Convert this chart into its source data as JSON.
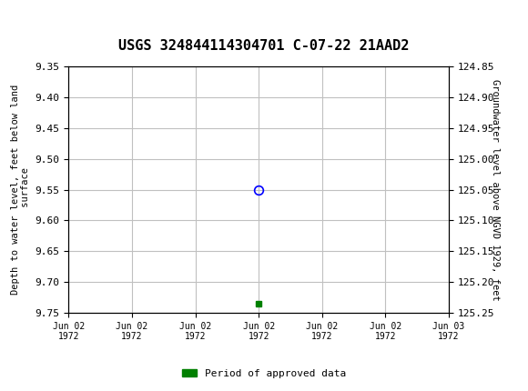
{
  "title": "USGS 324844114304701 C-07-22 21AAD2",
  "left_ylabel": "Depth to water level, feet below land\n surface",
  "right_ylabel": "Groundwater level above NGVD 1929, feet",
  "ylim_left": [
    9.35,
    9.75
  ],
  "ylim_right": [
    124.85,
    125.25
  ],
  "left_yticks": [
    9.35,
    9.4,
    9.45,
    9.5,
    9.55,
    9.6,
    9.65,
    9.7,
    9.75
  ],
  "right_yticks": [
    125.25,
    125.2,
    125.15,
    125.1,
    125.05,
    125.0,
    124.95,
    124.9,
    124.85
  ],
  "xlim": [
    0,
    6
  ],
  "xtick_labels": [
    "Jun 02\n1972",
    "Jun 02\n1972",
    "Jun 02\n1972",
    "Jun 02\n1972",
    "Jun 02\n1972",
    "Jun 02\n1972",
    "Jun 03\n1972"
  ],
  "data_point_x": 3,
  "data_point_y": 9.55,
  "green_point_x": 3,
  "green_point_y": 9.735,
  "header_color": "#1a6b3c",
  "background_color": "#ffffff",
  "grid_color": "#c0c0c0",
  "legend_label": "Period of approved data",
  "legend_color": "#008000"
}
